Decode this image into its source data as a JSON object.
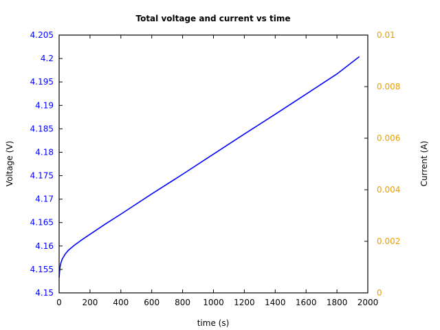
{
  "chart_data": {
    "type": "line",
    "title": "Total voltage and current vs time",
    "xlabel": "time (s)",
    "ylabel": "Voltage (V)",
    "y2label": "Current (A)",
    "xlim": [
      0,
      2000
    ],
    "ylim": [
      4.15,
      4.205
    ],
    "y2lim": [
      0,
      0.01
    ],
    "x_ticks": [
      "0",
      "200",
      "400",
      "600",
      "800",
      "1000",
      "1200",
      "1400",
      "1600",
      "1800",
      "2000"
    ],
    "y_ticks": [
      "4.15",
      "4.155",
      "4.16",
      "4.165",
      "4.17",
      "4.175",
      "4.18",
      "4.185",
      "4.19",
      "4.195",
      "4.2",
      "4.205"
    ],
    "y2_ticks": [
      "0",
      "0.002",
      "0.004",
      "0.006",
      "0.008",
      "0.01"
    ],
    "grid": false,
    "legend": null,
    "colors": {
      "voltage_line": "#0000ff",
      "left_axis_text": "#0000ff",
      "right_axis_text": "#e69f00"
    },
    "series": [
      {
        "name": "Voltage",
        "axis": "left",
        "x": [
          0,
          5,
          10,
          20,
          40,
          60,
          100,
          150,
          200,
          300,
          400,
          600,
          800,
          1000,
          1200,
          1400,
          1600,
          1800,
          1945
        ],
        "values": [
          4.1533,
          4.1553,
          4.1562,
          4.1572,
          4.1583,
          4.1591,
          4.1602,
          4.1614,
          4.1625,
          4.1647,
          4.1668,
          4.1711,
          4.1753,
          4.1796,
          4.1839,
          4.1881,
          4.1924,
          4.1967,
          4.2004
        ]
      }
    ]
  }
}
